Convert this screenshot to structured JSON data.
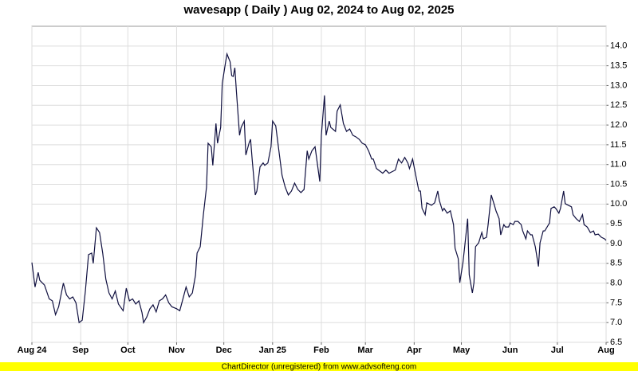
{
  "chart_data": {
    "type": "line",
    "title": "wavesapp ( Daily ) Aug 02, 2024 to Aug 02, 2025",
    "footer": "ChartDirector (unregistered) from www.advsofteng.com",
    "color": "#101040",
    "grid": true,
    "xlim": [
      0,
      365
    ],
    "xticks": [
      {
        "value": 0,
        "label": "Aug 24"
      },
      {
        "value": 31,
        "label": "Sep"
      },
      {
        "value": 61,
        "label": "Oct"
      },
      {
        "value": 92,
        "label": "Nov"
      },
      {
        "value": 122,
        "label": "Dec"
      },
      {
        "value": 153,
        "label": "Jan 25"
      },
      {
        "value": 184,
        "label": "Feb"
      },
      {
        "value": 212,
        "label": "Mar"
      },
      {
        "value": 243,
        "label": "Apr"
      },
      {
        "value": 273,
        "label": "May"
      },
      {
        "value": 304,
        "label": "Jun"
      },
      {
        "value": 334,
        "label": "Jul"
      },
      {
        "value": 365,
        "label": "Aug"
      }
    ],
    "ylim": [
      6.5,
      14.5
    ],
    "yticks": [
      6.5,
      {
        "value": 7,
        "label": "7.0"
      },
      7.5,
      {
        "value": 8,
        "label": "8.0"
      },
      8.5,
      {
        "value": 9,
        "label": "9.0"
      },
      9.5,
      {
        "value": 10,
        "label": "10.0"
      },
      10.5,
      {
        "value": 11,
        "label": "11.0"
      },
      11.5,
      {
        "value": 12,
        "label": "12.0"
      },
      12.5,
      {
        "value": 13,
        "label": "13.0"
      },
      13.5,
      {
        "value": 14,
        "label": "14.0"
      }
    ],
    "x": [
      0,
      2,
      4,
      5,
      8,
      11,
      13,
      15,
      17,
      20,
      22,
      24,
      26,
      28,
      30,
      32,
      34,
      36,
      38,
      39,
      41,
      43,
      45,
      47,
      49,
      51,
      53,
      55,
      58,
      60,
      62,
      64,
      66,
      68,
      70,
      71,
      73,
      75,
      77,
      79,
      81,
      83,
      85,
      87,
      89,
      92,
      94,
      96,
      98,
      100,
      102,
      104,
      105,
      107,
      109,
      111,
      112,
      114,
      115,
      117,
      118,
      120,
      121,
      123,
      124,
      126,
      127,
      128,
      129,
      130,
      132,
      133,
      135,
      136,
      138,
      139,
      140,
      142,
      143,
      145,
      147,
      148,
      150,
      152,
      153,
      155,
      157,
      159,
      161,
      163,
      165,
      167,
      169,
      171,
      173,
      175,
      176,
      178,
      180,
      183,
      184,
      186,
      187,
      189,
      190,
      193,
      194,
      196,
      198,
      200,
      202,
      204,
      206,
      208,
      210,
      212,
      214,
      216,
      217,
      219,
      221,
      223,
      225,
      227,
      229,
      231,
      233,
      235,
      237,
      239,
      240,
      242,
      244,
      246,
      247,
      248,
      250,
      251,
      254,
      256,
      258,
      259,
      261,
      262,
      264,
      266,
      268,
      269,
      271,
      272,
      274,
      275,
      277,
      278,
      280,
      281,
      282,
      284,
      286,
      287,
      289,
      290,
      292,
      294,
      295,
      297,
      298,
      300,
      301,
      303,
      304,
      306,
      307,
      309,
      311,
      312,
      314,
      315,
      317,
      318,
      320,
      322,
      323,
      325,
      326,
      329,
      330,
      332,
      333,
      335,
      336,
      338,
      339,
      341,
      343,
      344,
      346,
      348,
      350,
      351,
      353,
      355,
      357,
      358,
      360,
      362,
      364,
      365
    ],
    "values": [
      8.52,
      7.9,
      8.27,
      8.07,
      7.95,
      7.6,
      7.55,
      7.2,
      7.4,
      8.0,
      7.7,
      7.6,
      7.65,
      7.5,
      7.0,
      7.06,
      7.8,
      8.72,
      8.76,
      8.5,
      9.4,
      9.28,
      8.76,
      8.1,
      7.75,
      7.6,
      7.8,
      7.47,
      7.3,
      7.87,
      7.55,
      7.6,
      7.47,
      7.55,
      7.25,
      7.0,
      7.14,
      7.35,
      7.45,
      7.27,
      7.55,
      7.6,
      7.7,
      7.5,
      7.4,
      7.35,
      7.3,
      7.6,
      7.9,
      7.65,
      7.75,
      8.2,
      8.76,
      8.92,
      9.73,
      10.43,
      11.54,
      11.45,
      10.98,
      12.04,
      11.54,
      11.94,
      13.05,
      13.56,
      13.8,
      13.6,
      13.25,
      13.23,
      13.45,
      12.85,
      11.74,
      11.94,
      12.1,
      11.24,
      11.54,
      11.64,
      11.14,
      10.23,
      10.33,
      10.94,
      11.04,
      10.98,
      11.04,
      11.45,
      12.1,
      11.98,
      11.35,
      10.73,
      10.43,
      10.23,
      10.33,
      10.53,
      10.37,
      10.29,
      10.37,
      11.35,
      11.14,
      11.35,
      11.45,
      10.57,
      11.74,
      12.75,
      11.74,
      12.1,
      11.94,
      11.84,
      12.35,
      12.51,
      12.04,
      11.84,
      11.9,
      11.74,
      11.7,
      11.64,
      11.54,
      11.5,
      11.35,
      11.14,
      11.14,
      10.9,
      10.84,
      10.78,
      10.86,
      10.78,
      10.82,
      10.86,
      11.14,
      11.04,
      11.18,
      11.04,
      10.9,
      11.14,
      10.73,
      10.33,
      10.33,
      9.89,
      9.73,
      10.03,
      9.97,
      10.03,
      10.33,
      10.09,
      9.83,
      9.89,
      9.77,
      9.83,
      9.48,
      8.88,
      8.62,
      8.01,
      8.52,
      8.88,
      9.63,
      8.21,
      7.75,
      8.01,
      8.92,
      9.02,
      9.28,
      9.12,
      9.16,
      9.48,
      10.23,
      9.97,
      9.83,
      9.63,
      9.22,
      9.48,
      9.42,
      9.42,
      9.52,
      9.48,
      9.56,
      9.56,
      9.48,
      9.32,
      9.12,
      9.32,
      9.22,
      9.22,
      8.92,
      8.42,
      9.02,
      9.32,
      9.32,
      9.52,
      9.89,
      9.93,
      9.89,
      9.77,
      9.89,
      10.33,
      10.01,
      9.97,
      9.93,
      9.73,
      9.63,
      9.56,
      9.73,
      9.48,
      9.42,
      9.28,
      9.32,
      9.22,
      9.24,
      9.16,
      9.12,
      9.08
    ]
  }
}
